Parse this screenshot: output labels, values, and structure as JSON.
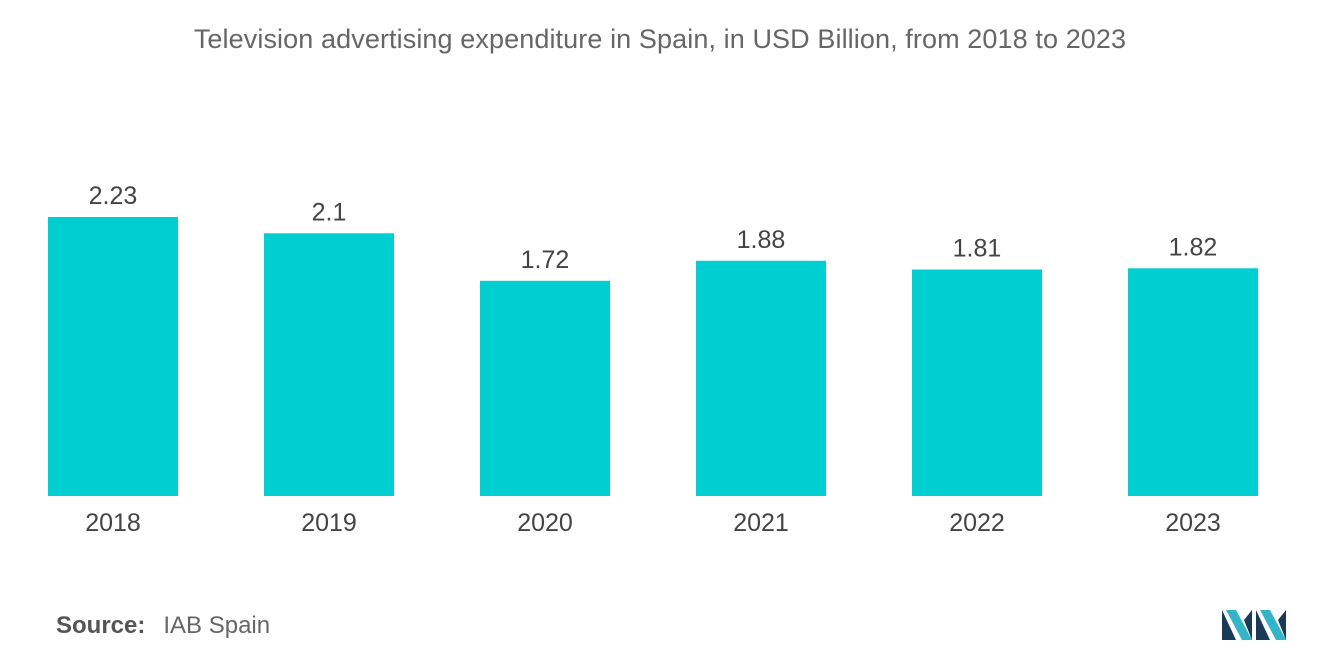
{
  "chart_data": {
    "type": "bar",
    "title": "Television advertising expenditure in Spain, in USD Billion, from 2018 to 2023",
    "categories": [
      "2018",
      "2019",
      "2020",
      "2021",
      "2022",
      "2023"
    ],
    "values": [
      2.23,
      2.1,
      1.72,
      1.88,
      1.81,
      1.82
    ],
    "value_labels": [
      "2.23",
      "2.1",
      "1.72",
      "1.88",
      "1.81",
      "1.82"
    ],
    "xlabel": "",
    "ylabel": "",
    "ylim": [
      0,
      2.23
    ],
    "grid": false,
    "bar_color": "#00CED1"
  },
  "source": {
    "label": "Source:",
    "text": "IAB Spain"
  },
  "logo": {
    "icon": "mordor-intelligence-logo-icon",
    "color_dark": "#1B3A57",
    "color_light": "#33B5C9"
  }
}
